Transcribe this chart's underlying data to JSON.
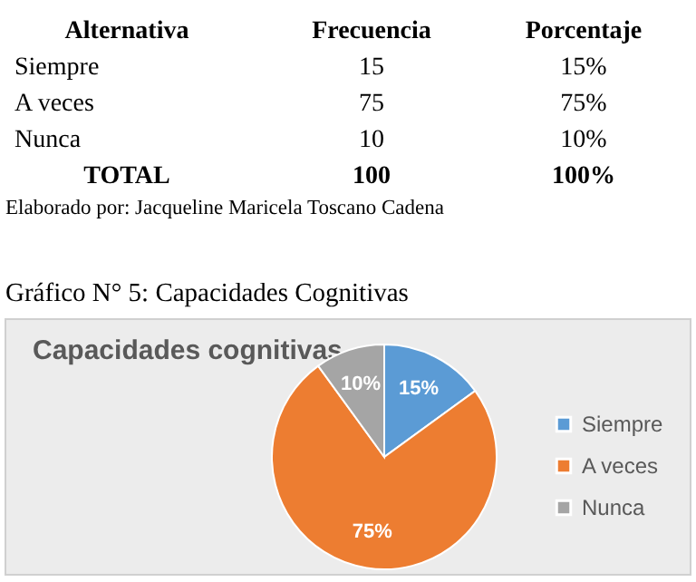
{
  "chart_data": {
    "type": "pie",
    "title": "Capacidades cognitivas",
    "categories": [
      "Siempre",
      "A veces",
      "Nunca"
    ],
    "values": [
      15,
      75,
      10
    ],
    "colors": [
      "#5b9bd5",
      "#ed7d31",
      "#a5a5a5"
    ],
    "value_labels": [
      "15%",
      "75%",
      "10%"
    ],
    "legend": "right",
    "annotations": [
      "Alternativa",
      "Frecuencia",
      "Porcentaje",
      "Siempre",
      "15",
      "15%",
      "A veces",
      "75",
      "75%",
      "Nunca",
      "10",
      "10%",
      "TOTAL",
      "100",
      "100%",
      "Elaborado por: Jacqueline Maricela Toscano Cadena",
      "Gráfico N° 5: Capacidades Cognitivas"
    ]
  }
}
